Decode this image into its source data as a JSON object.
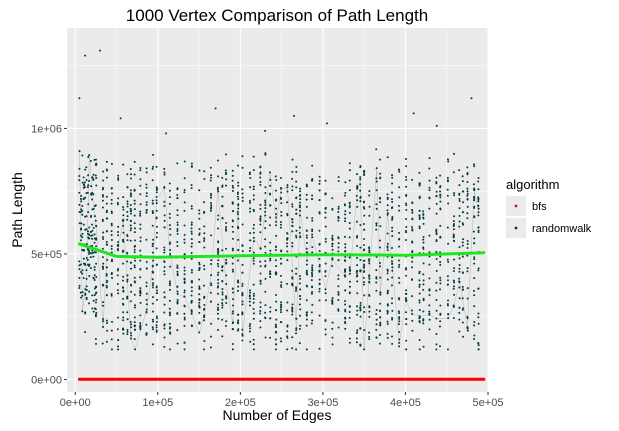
{
  "chart_data": {
    "type": "scatter",
    "title": "1000  Vertex Comparison of Path Length",
    "xlabel": "Number of Edges",
    "ylabel": "Path Length",
    "xlim": [
      -10000,
      500000
    ],
    "ylim": [
      -50000,
      1400000
    ],
    "x_ticks": [
      0,
      100000,
      200000,
      300000,
      400000,
      500000
    ],
    "x_tick_labels": [
      "0e+00",
      "1e+05",
      "2e+05",
      "3e+05",
      "4e+05",
      "5e+05"
    ],
    "y_ticks": [
      0,
      500000,
      1000000
    ],
    "y_tick_labels": [
      "0e+00",
      "5e+05",
      "1e+06"
    ],
    "grid": true,
    "legend": {
      "title": "algorithm",
      "placement": "right",
      "entries": [
        {
          "label": "bfs",
          "color": "#b2182b"
        },
        {
          "label": "randomwalk",
          "color": "#003c3c"
        }
      ]
    },
    "series": [
      {
        "name": "bfs",
        "color": "#b2182b",
        "kind": "points",
        "x_range": [
          5000,
          495000
        ],
        "y_range": [
          0,
          1500
        ]
      },
      {
        "name": "randomwalk",
        "color": "#003c3c",
        "kind": "points",
        "x_range": [
          5000,
          495000
        ],
        "y_range": [
          120000,
          1310000
        ]
      }
    ],
    "smooth_lines": [
      {
        "series": "randomwalk",
        "color": "#1ee61e",
        "x": [
          5000,
          50000,
          100000,
          200000,
          300000,
          400000,
          495000
        ],
        "y": [
          540000,
          490000,
          487000,
          493000,
          497000,
          495000,
          505000
        ]
      },
      {
        "series": "bfs",
        "color": "#ff0000",
        "x": [
          5000,
          495000
        ],
        "y": [
          1000,
          1000
        ]
      }
    ],
    "colors": {
      "panel_background": "#ebebeb",
      "grid_major": "#ffffff",
      "connector_line": "#a9a9a9"
    }
  }
}
